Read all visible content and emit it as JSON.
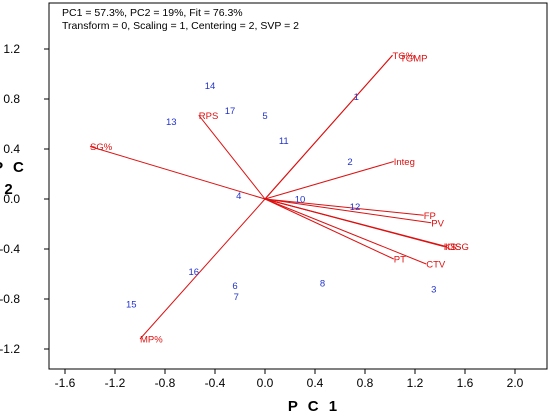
{
  "chart_data": {
    "type": "biplot",
    "info_line_1": "PC1 = 57.3%, PC2 = 19%, Fit = 76.3%",
    "info_line_2": "Transform = 0, Scaling = 1, Centering = 2, SVP = 2",
    "xlabel": "P C 1",
    "ylabel_lines": [
      "P C",
      "2"
    ],
    "xlim": [
      -1.6,
      2.0
    ],
    "ylim": [
      -1.2,
      1.2
    ],
    "x_ticks": [
      -1.6,
      -1.2,
      -0.8,
      -0.4,
      0.0,
      0.4,
      0.8,
      1.2,
      1.6,
      2.0
    ],
    "x_tick_labels": [
      "-1.6",
      "-1.2",
      "-0.8",
      "-0.4",
      "0.0",
      "0.4",
      "0.8",
      "1.2",
      "1.6",
      "2.0"
    ],
    "y_ticks": [
      1.2,
      0.8,
      0.4,
      0.0,
      -0.4,
      -0.8,
      -1.2
    ],
    "y_tick_labels": [
      "1.2",
      "0.8",
      "0.4",
      "0.0",
      "-0.4",
      "-0.8",
      "-1.2"
    ],
    "observation_color": "#2233cc",
    "vector_color": "#dd1111",
    "observations": [
      {
        "label": "1",
        "x": 0.73,
        "y": 0.82
      },
      {
        "label": "2",
        "x": 0.68,
        "y": 0.3
      },
      {
        "label": "3",
        "x": 1.35,
        "y": -0.72
      },
      {
        "label": "4",
        "x": -0.21,
        "y": 0.03
      },
      {
        "label": "5",
        "x": 0.0,
        "y": 0.67
      },
      {
        "label": "6",
        "x": -0.24,
        "y": -0.69
      },
      {
        "label": "7",
        "x": -0.23,
        "y": -0.78
      },
      {
        "label": "8",
        "x": 0.46,
        "y": -0.67
      },
      {
        "label": "10",
        "x": 0.28,
        "y": 0.0
      },
      {
        "label": "11",
        "x": 0.15,
        "y": 0.47
      },
      {
        "label": "12",
        "x": 0.72,
        "y": -0.06
      },
      {
        "label": "13",
        "x": -0.75,
        "y": 0.62
      },
      {
        "label": "14",
        "x": -0.44,
        "y": 0.91
      },
      {
        "label": "15",
        "x": -1.07,
        "y": -0.84
      },
      {
        "label": "16",
        "x": -0.57,
        "y": -0.58
      },
      {
        "label": "17",
        "x": -0.28,
        "y": 0.71
      }
    ],
    "vectors": [
      {
        "label": "TG%",
        "x": 1.02,
        "y": 1.15,
        "label_x": 1.02,
        "label_y": 1.15
      },
      {
        "label": "TGMP",
        "x": 1.02,
        "y": 1.15,
        "label_x": 1.08,
        "label_y": 1.13
      },
      {
        "label": "RPS",
        "x": -0.53,
        "y": 0.67,
        "label_x": -0.53,
        "label_y": 0.67
      },
      {
        "label": "SG%",
        "x": -1.4,
        "y": 0.42,
        "label_x": -1.4,
        "label_y": 0.42
      },
      {
        "label": "Integ",
        "x": 1.03,
        "y": 0.3,
        "label_x": 1.03,
        "label_y": 0.3
      },
      {
        "label": "FP",
        "x": 1.27,
        "y": -0.13,
        "label_x": 1.27,
        "label_y": -0.13
      },
      {
        "label": "PV",
        "x": 1.33,
        "y": -0.19,
        "label_x": 1.33,
        "label_y": -0.19
      },
      {
        "label": "KS",
        "x": 1.43,
        "y": -0.38,
        "label_x": 1.43,
        "label_y": -0.38
      },
      {
        "label": "IGS",
        "x": 1.44,
        "y": -0.38,
        "label_x": 1.44,
        "label_y": -0.38
      },
      {
        "label": "ISG",
        "x": 1.45,
        "y": -0.38,
        "label_x": 1.5,
        "label_y": -0.38
      },
      {
        "label": "PT",
        "x": 1.03,
        "y": -0.48,
        "label_x": 1.03,
        "label_y": -0.48
      },
      {
        "label": "CTV",
        "x": 1.29,
        "y": -0.52,
        "label_x": 1.29,
        "label_y": -0.52
      },
      {
        "label": "MP%",
        "x": -1.0,
        "y": -1.12,
        "label_x": -1.0,
        "label_y": -1.12
      }
    ]
  }
}
